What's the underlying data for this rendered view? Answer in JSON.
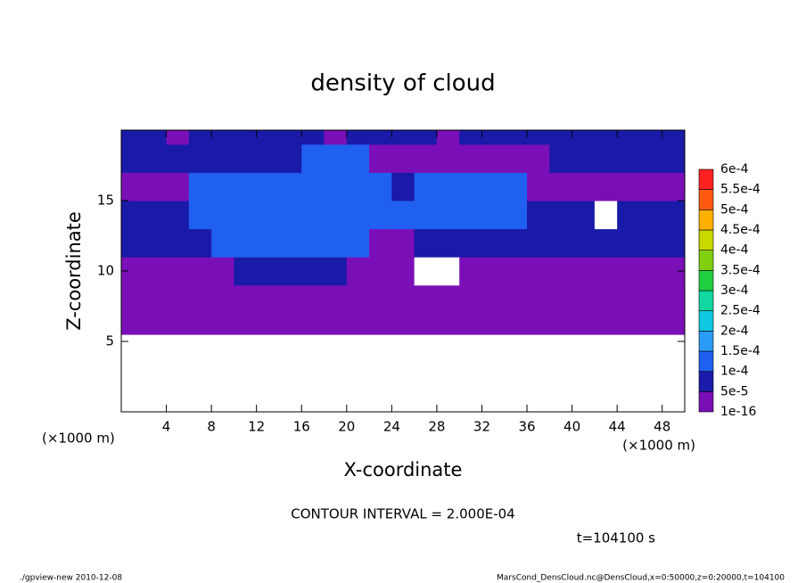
{
  "chart_data": {
    "type": "contour",
    "title": "density of cloud",
    "xlabel": "X-coordinate",
    "ylabel": "Z-coordinate",
    "xunit": "(×1000 m)",
    "annotation": "CONTOUR INTERVAL = 2.000E-04",
    "time_label": "t=104100 s",
    "footer_left": "./gpview-new  2010-12-08",
    "footer_right": "MarsCond_DensCloud.nc@DensCloud,x=0:50000,z=0:20000,t=104100",
    "xlim": [
      0,
      50
    ],
    "ylim": [
      0,
      20
    ],
    "xticks": [
      4,
      8,
      12,
      16,
      20,
      24,
      28,
      32,
      36,
      40,
      44,
      48
    ],
    "yticks": [
      5,
      10,
      15
    ],
    "xbins": [
      0,
      2,
      4,
      6,
      8,
      10,
      12,
      14,
      16,
      18,
      20,
      22,
      24,
      26,
      28,
      30,
      32,
      34,
      36,
      38,
      40,
      42,
      44,
      46,
      48,
      50
    ],
    "ybins": [
      0,
      5.5,
      7,
      9,
      11,
      13,
      15,
      17,
      19,
      20
    ],
    "levels": [
      1e-16,
      {
        "value": 5e-05,
        "label": "5e-5"
      },
      {
        "value": 0.0001,
        "label": "1e-4"
      },
      {
        "value": 0.00015,
        "label": "1.5e-4"
      },
      {
        "value": 0.0002,
        "label": "2e-4"
      },
      {
        "value": 0.00025,
        "label": "2.5e-4"
      },
      {
        "value": 0.0003,
        "label": "3e-4"
      },
      {
        "value": 0.00035,
        "label": "3.5e-4"
      },
      {
        "value": 0.0004,
        "label": "4e-4"
      },
      {
        "value": 0.00045,
        "label": "4.5e-4"
      },
      {
        "value": 0.0005,
        "label": "5e-4"
      },
      {
        "value": 0.00055,
        "label": "5.5e-4"
      },
      {
        "value": 0.0006,
        "label": "6e-4"
      }
    ],
    "colors": [
      "#7a0fb8",
      "#1a1aa8",
      "#2060f0",
      "#2a9cf5",
      "#10c8e0",
      "#10d8a0",
      "#20d040",
      "#80d010",
      "#c8d800",
      "#ffb000",
      "#ff5a10",
      "#ff2020",
      "#ff9090"
    ],
    "values": [
      [
        0,
        0,
        0,
        0,
        0,
        0,
        0,
        0,
        0,
        0,
        0,
        0,
        0,
        0,
        0,
        0,
        0,
        0,
        0,
        0,
        0,
        0,
        0,
        0,
        0
      ],
      [
        2e-05,
        2e-05,
        2e-05,
        2e-05,
        2e-05,
        2e-05,
        2e-05,
        2e-05,
        2e-05,
        2e-05,
        2e-05,
        2e-05,
        2e-05,
        2e-05,
        2e-05,
        2e-05,
        2e-05,
        2e-05,
        2e-05,
        2e-05,
        2e-05,
        2e-05,
        2e-05,
        2e-05,
        2e-05
      ],
      [
        2e-05,
        2e-05,
        2e-05,
        2e-05,
        2e-05,
        2e-05,
        2e-05,
        2e-05,
        2e-05,
        2e-05,
        2e-05,
        2e-05,
        2e-05,
        2e-05,
        2e-05,
        2e-05,
        2e-05,
        2e-05,
        2e-05,
        2e-05,
        2e-05,
        2e-05,
        2e-05,
        2e-05,
        2e-05
      ],
      [
        2e-05,
        2e-05,
        2e-05,
        2e-05,
        2e-05,
        7e-05,
        7e-05,
        7e-05,
        7e-05,
        7e-05,
        2e-05,
        2e-05,
        2e-05,
        0,
        0,
        2e-05,
        2e-05,
        2e-05,
        2e-05,
        2e-05,
        2e-05,
        2e-05,
        2e-05,
        2e-05,
        2e-05
      ],
      [
        7e-05,
        7e-05,
        7e-05,
        7e-05,
        0.00012,
        0.00012,
        0.00012,
        0.00012,
        0.00012,
        0.00012,
        0.00012,
        2e-05,
        2e-05,
        7e-05,
        7e-05,
        7e-05,
        7e-05,
        7e-05,
        7e-05,
        7e-05,
        7e-05,
        7e-05,
        7e-05,
        7e-05,
        7e-05
      ],
      [
        7e-05,
        7e-05,
        7e-05,
        0.00012,
        0.00012,
        0.00012,
        0.00012,
        0.00012,
        0.00012,
        0.00012,
        0.00012,
        0.00012,
        0.00012,
        0.00012,
        0.00012,
        0.00012,
        0.00012,
        0.00012,
        7e-05,
        7e-05,
        7e-05,
        0,
        7e-05,
        7e-05,
        7e-05
      ],
      [
        2e-05,
        2e-05,
        2e-05,
        0.00012,
        0.00012,
        0.00012,
        0.00012,
        0.00012,
        0.00012,
        0.00012,
        0.00012,
        0.00012,
        7e-05,
        0.00012,
        0.00012,
        0.00012,
        0.00012,
        0.00012,
        2e-05,
        2e-05,
        2e-05,
        2e-05,
        2e-05,
        2e-05,
        2e-05
      ],
      [
        7e-05,
        7e-05,
        7e-05,
        7e-05,
        7e-05,
        7e-05,
        7e-05,
        7e-05,
        0.00012,
        0.00012,
        0.00012,
        2e-05,
        2e-05,
        2e-05,
        2e-05,
        2e-05,
        2e-05,
        2e-05,
        2e-05,
        7e-05,
        7e-05,
        7e-05,
        7e-05,
        7e-05,
        7e-05
      ],
      [
        7e-05,
        7e-05,
        2e-05,
        7e-05,
        7e-05,
        7e-05,
        7e-05,
        7e-05,
        7e-05,
        2e-05,
        7e-05,
        7e-05,
        7e-05,
        7e-05,
        2e-05,
        7e-05,
        7e-05,
        7e-05,
        7e-05,
        7e-05,
        7e-05,
        7e-05,
        7e-05,
        7e-05,
        7e-05
      ]
    ]
  }
}
